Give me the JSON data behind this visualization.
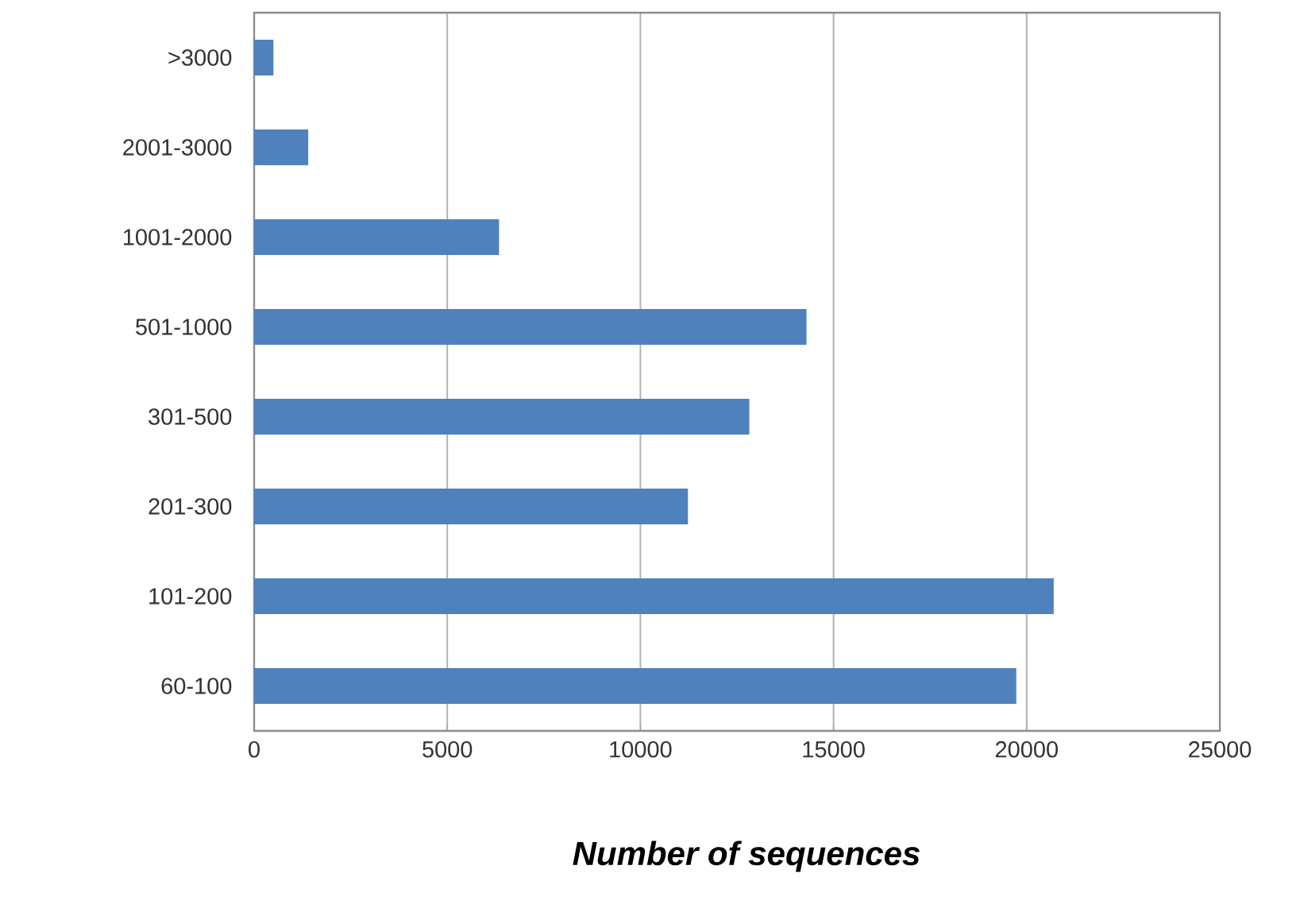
{
  "chart_data": {
    "type": "bar",
    "orientation": "horizontal",
    "xlabel": "Number of sequences",
    "categories": [
      ">3000",
      "2001-3000",
      "1001-2000",
      "501-1000",
      "301-500",
      "201-300",
      "101-200",
      "60-100"
    ],
    "values": [
      500,
      1400,
      6340,
      14300,
      12820,
      11230,
      20700,
      19730
    ],
    "color": "#4f81bd",
    "xlim": [
      0,
      25000
    ],
    "xticks": [
      0,
      5000,
      10000,
      15000,
      20000,
      25000
    ],
    "grid": "x"
  }
}
